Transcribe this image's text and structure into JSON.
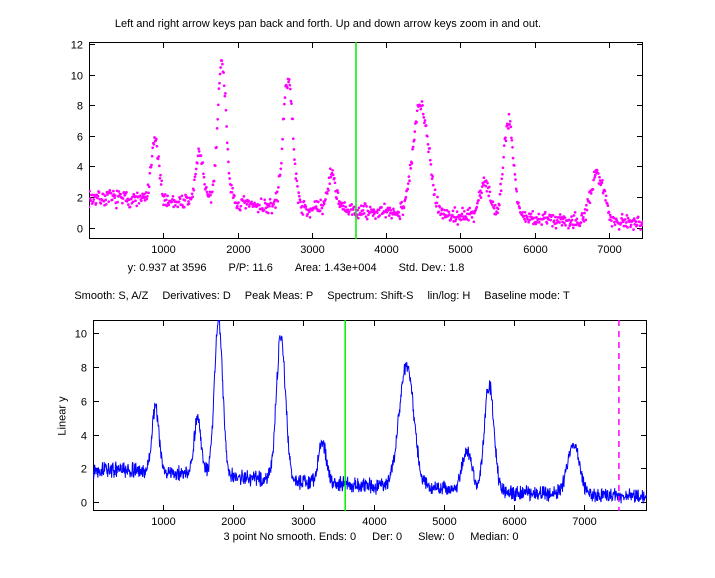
{
  "title": "Left and right arrow keys pan back and forth. Up and down arrow keys zoom in and out.",
  "status_top": {
    "segments": [
      "y: 0.937 at 3596",
      "P/P: 11.6",
      "Area: 1.43e+004",
      "Std. Dev.: 1.8"
    ]
  },
  "keys_help": {
    "segments": [
      "Smooth: S, A/Z",
      "Derivatives: D",
      "Peak Meas: P",
      "Spectrum: Shift-S",
      "lin/log: H",
      "Baseline mode: T"
    ]
  },
  "status_bottom": {
    "segments": [
      "3 point No smooth. Ends: 0",
      "Der: 0",
      "Slew: 0",
      "Median: 0"
    ]
  },
  "bottom_ylabel": "Linear y",
  "colors": {
    "top_series": "#ff00ff",
    "bottom_series": "#0000ff",
    "cursor": "#00ee00",
    "range_marker": "#ff00ff",
    "axes": "#000000",
    "background": "#ffffff"
  },
  "chart_data": [
    {
      "name": "top",
      "type": "scatter",
      "marker": "point",
      "color": "#ff00ff",
      "xlim": [
        0,
        7460
      ],
      "ylim": [
        -0.75,
        12.15
      ],
      "xticks": [
        1000,
        2000,
        3000,
        4000,
        5000,
        6000,
        7000
      ],
      "yticks": [
        0,
        2,
        4,
        6,
        8,
        10,
        12
      ],
      "grid": false,
      "cursor_x": 3596,
      "cursor_y": 0.937,
      "cursor_color": "#00ee00",
      "n_points": 930,
      "signal": {
        "seed": 7,
        "noise_amp": 0.65,
        "baseline": {
          "amp": 1.95,
          "scale": 5200,
          "power": 1.4
        },
        "peaks": [
          {
            "x": 890,
            "height": 3.95,
            "sigma": 48
          },
          {
            "x": 1490,
            "height": 3.3,
            "sigma": 50
          },
          {
            "x": 1790,
            "height": 9.3,
            "sigma": 58
          },
          {
            "x": 2680,
            "height": 8.5,
            "sigma": 65
          },
          {
            "x": 3270,
            "height": 2.4,
            "sigma": 55
          },
          {
            "x": 4470,
            "height": 7.2,
            "sigma": 105
          },
          {
            "x": 5330,
            "height": 2.3,
            "sigma": 70
          },
          {
            "x": 5650,
            "height": 6.35,
            "sigma": 68
          },
          {
            "x": 6850,
            "height": 3.1,
            "sigma": 85
          }
        ]
      }
    },
    {
      "name": "bottom",
      "type": "line",
      "color": "#0000ff",
      "ylabel": "Linear y",
      "xlim": [
        0,
        7900
      ],
      "ylim": [
        -0.53,
        10.8
      ],
      "xticks": [
        1000,
        2000,
        3000,
        4000,
        5000,
        6000,
        7000
      ],
      "yticks": [
        0,
        2,
        4,
        6,
        8,
        10
      ],
      "grid": false,
      "cursor_x": 3596,
      "cursor_color": "#00ee00",
      "marker_line": {
        "x": 7500,
        "color": "#ff00ff",
        "style": "dashed"
      },
      "n_points": 1580,
      "signal": {
        "seed": 13,
        "noise_amp": 0.55,
        "baseline": {
          "amp": 1.95,
          "scale": 5200,
          "power": 1.4
        },
        "peaks": [
          {
            "x": 890,
            "height": 3.95,
            "sigma": 48
          },
          {
            "x": 1490,
            "height": 3.3,
            "sigma": 50
          },
          {
            "x": 1790,
            "height": 9.3,
            "sigma": 58
          },
          {
            "x": 2680,
            "height": 8.5,
            "sigma": 65
          },
          {
            "x": 3270,
            "height": 2.4,
            "sigma": 55
          },
          {
            "x": 4470,
            "height": 7.2,
            "sigma": 105
          },
          {
            "x": 5330,
            "height": 2.3,
            "sigma": 70
          },
          {
            "x": 5650,
            "height": 6.35,
            "sigma": 68
          },
          {
            "x": 6850,
            "height": 3.1,
            "sigma": 85
          }
        ]
      }
    }
  ]
}
